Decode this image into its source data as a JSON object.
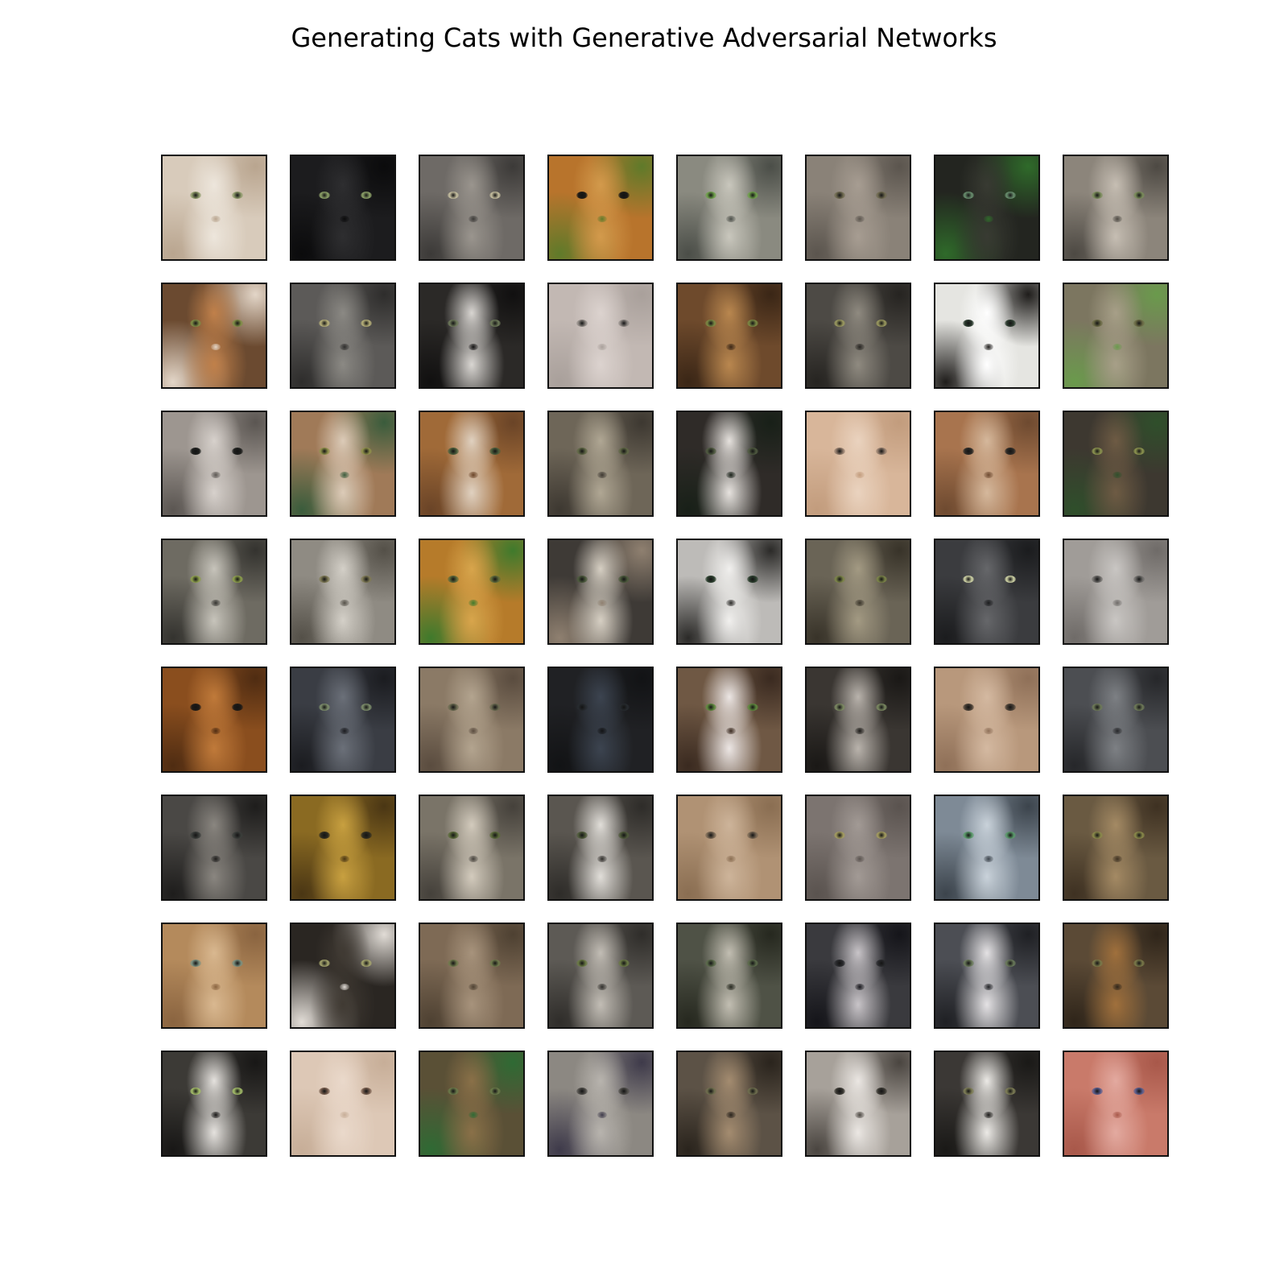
{
  "title": "Generating Cats with Generative Adversarial Networks",
  "grid": {
    "rows": 8,
    "cols": 8,
    "samples": [
      {
        "bg": "#d8cbbb",
        "accent": "#ede6dc",
        "shade": "#b9a58f",
        "eye": "#8e9a6a"
      },
      {
        "bg": "#1c1c1e",
        "accent": "#2e2e30",
        "shade": "#0b0b0c",
        "eye": "#8fa46a"
      },
      {
        "bg": "#6e6a66",
        "accent": "#9a958e",
        "shade": "#3c3a38",
        "eye": "#c7c0a0"
      },
      {
        "bg": "#b8742c",
        "accent": "#d39a4c",
        "shade": "#5f7a2a",
        "eye": "#1d1a16"
      },
      {
        "bg": "#8a8a80",
        "accent": "#c9c7bd",
        "shade": "#4b4e48",
        "eye": "#6ea04a"
      },
      {
        "bg": "#8a8278",
        "accent": "#a79d92",
        "shade": "#5b554e",
        "eye": "#6f6a50"
      },
      {
        "bg": "#232520",
        "accent": "#383a32",
        "shade": "#2f6a2a",
        "eye": "#6a9070"
      },
      {
        "bg": "#8c857b",
        "accent": "#c6beb3",
        "shade": "#4d4943",
        "eye": "#7a8c5a"
      },
      {
        "bg": "#6b4a30",
        "accent": "#c0804a",
        "shade": "#e3d6c8",
        "eye": "#7f8e46"
      },
      {
        "bg": "#5c5a58",
        "accent": "#8b8984",
        "shade": "#2e2d2c",
        "eye": "#b9b27a"
      },
      {
        "bg": "#2b2927",
        "accent": "#d9d6d2",
        "shade": "#111010",
        "eye": "#6e7a5a"
      },
      {
        "bg": "#c2b8b3",
        "accent": "#dcd3cf",
        "shade": "#a9a09b",
        "eye": "#8d8782"
      },
      {
        "bg": "#6e4a2c",
        "accent": "#b9874f",
        "shade": "#3a2616",
        "eye": "#7a8a44"
      },
      {
        "bg": "#4d4a45",
        "accent": "#8f8a80",
        "shade": "#262421",
        "eye": "#9c9b60"
      },
      {
        "bg": "#e5e5e1",
        "accent": "#ffffff",
        "shade": "#1f1d1b",
        "eye": "#2b3b2e"
      },
      {
        "bg": "#7c7660",
        "accent": "#a79f88",
        "shade": "#6a9a4c",
        "eye": "#6a6a44"
      },
      {
        "bg": "#9d9690",
        "accent": "#d7d1cc",
        "shade": "#5b5652",
        "eye": "#1e1f1d"
      },
      {
        "bg": "#a07a58",
        "accent": "#dccbb8",
        "shade": "#3a5c3c",
        "eye": "#8f914a"
      },
      {
        "bg": "#a06a38",
        "accent": "#e0d1c0",
        "shade": "#6a4427",
        "eye": "#4c5f3c"
      },
      {
        "bg": "#6e6658",
        "accent": "#b0a794",
        "shade": "#3d3831",
        "eye": "#5f6745"
      },
      {
        "bg": "#2f2b28",
        "accent": "#e6e2de",
        "shade": "#182018",
        "eye": "#4f5a40"
      },
      {
        "bg": "#d8b69a",
        "accent": "#ead3bf",
        "shade": "#c29c7d",
        "eye": "#907a6a"
      },
      {
        "bg": "#a8744e",
        "accent": "#d5b89c",
        "shade": "#6e4a30",
        "eye": "#2d2a26"
      },
      {
        "bg": "#3d3830",
        "accent": "#6e5b44",
        "shade": "#2f4f2b",
        "eye": "#8e9650"
      },
      {
        "bg": "#6e6b62",
        "accent": "#c7c4bb",
        "shade": "#34332f",
        "eye": "#8ea04c"
      },
      {
        "bg": "#8f8b83",
        "accent": "#d4d0c8",
        "shade": "#545048",
        "eye": "#7f7a55"
      },
      {
        "bg": "#b67b2a",
        "accent": "#d8a54c",
        "shade": "#3f7a2c",
        "eye": "#5f6a3a"
      },
      {
        "bg": "#3e3a36",
        "accent": "#d6cfc3",
        "shade": "#8f8070",
        "eye": "#4c5a3c"
      },
      {
        "bg": "#bdbbb8",
        "accent": "#f1f0ee",
        "shade": "#2b2a28",
        "eye": "#2c3f2e"
      },
      {
        "bg": "#6a6456",
        "accent": "#a39a83",
        "shade": "#383329",
        "eye": "#7b8448"
      },
      {
        "bg": "#3b3c3f",
        "accent": "#66676a",
        "shade": "#1b1c1e",
        "eye": "#d2d6a8"
      },
      {
        "bg": "#a09c98",
        "accent": "#c9c6c3",
        "shade": "#6f6b68",
        "eye": "#6d6b68"
      },
      {
        "bg": "#8a4e1e",
        "accent": "#c07a3a",
        "shade": "#4f2c12",
        "eye": "#1d1a17"
      },
      {
        "bg": "#3a3d44",
        "accent": "#6b7079",
        "shade": "#1b1c20",
        "eye": "#7e8f6c"
      },
      {
        "bg": "#8b7a66",
        "accent": "#b3a48f",
        "shade": "#5a4c3f",
        "eye": "#6a6a50"
      },
      {
        "bg": "#202124",
        "accent": "#3c4450",
        "shade": "#121315",
        "eye": "#262a2e"
      },
      {
        "bg": "#6f5844",
        "accent": "#ece6e4",
        "shade": "#3a2a20",
        "eye": "#5f8a3e"
      },
      {
        "bg": "#3a3632",
        "accent": "#b9b3ac",
        "shade": "#1a1816",
        "eye": "#7c8a62"
      },
      {
        "bg": "#b8987c",
        "accent": "#d4b9a1",
        "shade": "#8f7058",
        "eye": "#4a4036"
      },
      {
        "bg": "#4c4e52",
        "accent": "#7d8084",
        "shade": "#26272a",
        "eye": "#6e7a58"
      },
      {
        "bg": "#4a4845",
        "accent": "#8a8680",
        "shade": "#1e1d1c",
        "eye": "#3a3d3a"
      },
      {
        "bg": "#8a6a22",
        "accent": "#c8a040",
        "shade": "#4a3614",
        "eye": "#2e2b1f"
      },
      {
        "bg": "#7a7468",
        "accent": "#d3cbbd",
        "shade": "#45413b",
        "eye": "#5a6a3a"
      },
      {
        "bg": "#5a5650",
        "accent": "#e1ded9",
        "shade": "#2e2c29",
        "eye": "#4e5a3a"
      },
      {
        "bg": "#b09274",
        "accent": "#cdb49a",
        "shade": "#8a6e52",
        "eye": "#766552"
      },
      {
        "bg": "#7c7470",
        "accent": "#a29a95",
        "shade": "#5a534f",
        "eye": "#a39c5e"
      },
      {
        "bg": "#7e8a96",
        "accent": "#c9d2da",
        "shade": "#3c444c",
        "eye": "#5a9a6a"
      },
      {
        "bg": "#6a5a42",
        "accent": "#a48a64",
        "shade": "#3e3122",
        "eye": "#8a8a4a"
      },
      {
        "bg": "#b48a5c",
        "accent": "#d9b890",
        "shade": "#8a6440",
        "eye": "#7a9080"
      },
      {
        "bg": "#2a2622",
        "accent": "#403a33",
        "shade": "#e1dcd6",
        "eye": "#a7a76e"
      },
      {
        "bg": "#7e6a55",
        "accent": "#a7937c",
        "shade": "#4e4132",
        "eye": "#6f7a4c"
      },
      {
        "bg": "#5d5a55",
        "accent": "#c2bdb5",
        "shade": "#2f2d2a",
        "eye": "#6a7a44"
      },
      {
        "bg": "#4f5246",
        "accent": "#c2beb2",
        "shade": "#26281f",
        "eye": "#5a6a4a"
      },
      {
        "bg": "#3a3a3e",
        "accent": "#c8c4c8",
        "shade": "#15151a",
        "eye": "#2a2b2e"
      },
      {
        "bg": "#4c4e54",
        "accent": "#e4e2e4",
        "shade": "#1f2024",
        "eye": "#6a7a5a"
      },
      {
        "bg": "#5b4a36",
        "accent": "#a0703c",
        "shade": "#2f251a",
        "eye": "#7a7a4a"
      },
      {
        "bg": "#3c3a36",
        "accent": "#e5e2de",
        "shade": "#181716",
        "eye": "#a6c06a"
      },
      {
        "bg": "#ddc8b6",
        "accent": "#ead9cb",
        "shade": "#c7ae98",
        "eye": "#7a6050"
      },
      {
        "bg": "#5a5036",
        "accent": "#8a7048",
        "shade": "#2f6a34",
        "eye": "#6a7a4a"
      },
      {
        "bg": "#8c8882",
        "accent": "#b8b4ae",
        "shade": "#3e3a4a",
        "eye": "#4e4c48"
      },
      {
        "bg": "#5c5246",
        "accent": "#a48c70",
        "shade": "#2a241d",
        "eye": "#6e6e4e"
      },
      {
        "bg": "#a7a19a",
        "accent": "#ebe7e3",
        "shade": "#4a4540",
        "eye": "#3a3832"
      },
      {
        "bg": "#3b3835",
        "accent": "#eceae6",
        "shade": "#1a1917",
        "eye": "#7e7e56"
      },
      {
        "bg": "#c97a6a",
        "accent": "#e3aaa0",
        "shade": "#a8584a",
        "eye": "#5a5e8e"
      }
    ]
  }
}
